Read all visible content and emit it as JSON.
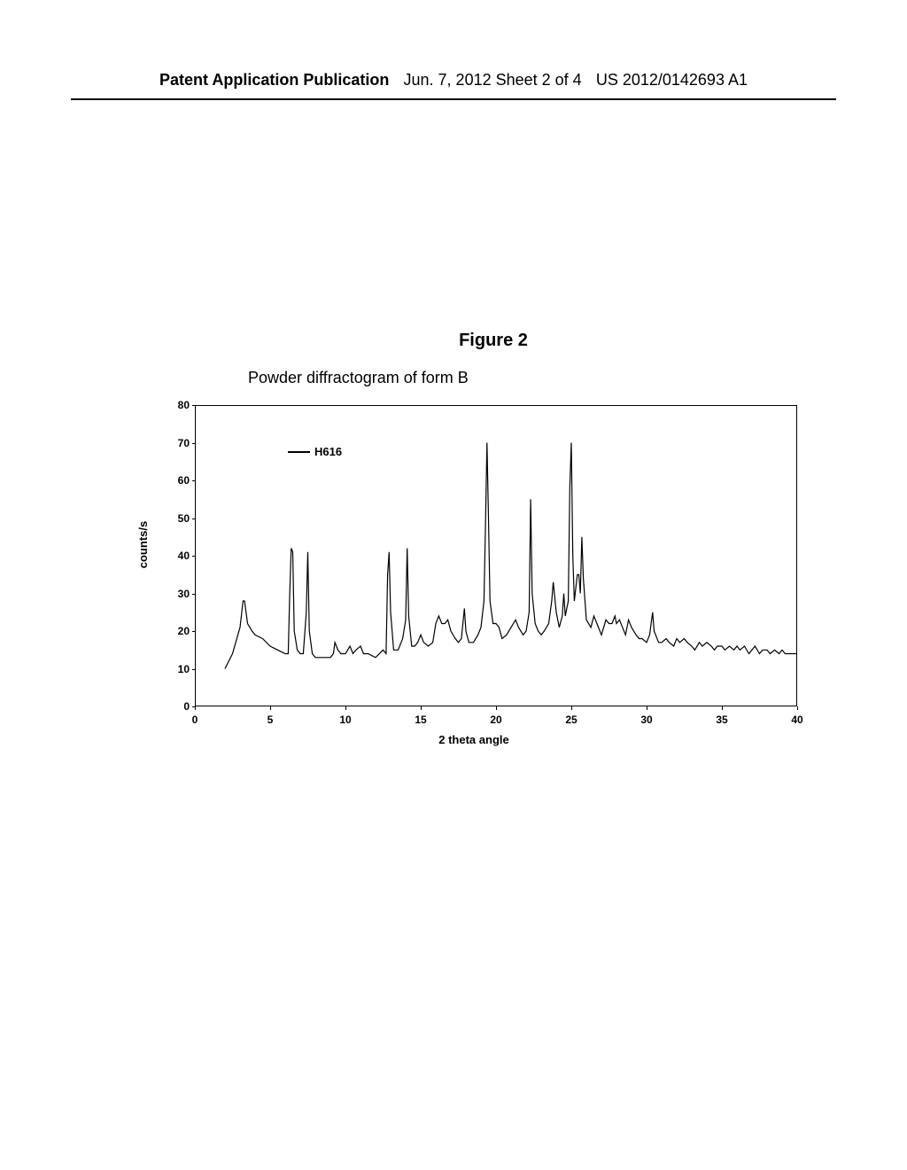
{
  "header": {
    "left": "Patent Application Publication",
    "center": "Jun. 7, 2012  Sheet 2 of 4",
    "right": "US 2012/0142693 A1"
  },
  "figure": {
    "title": "Figure 2",
    "subtitle": "Powder diffractogram of form B"
  },
  "chart": {
    "type": "line",
    "legend_label": "H616",
    "ylabel": "counts/s",
    "xlabel": "2 theta angle",
    "ylim": [
      0,
      80
    ],
    "xlim": [
      0,
      40
    ],
    "ytick_step": 10,
    "xtick_step": 5,
    "yticks": [
      0,
      10,
      20,
      30,
      40,
      50,
      60,
      70,
      80
    ],
    "xticks": [
      0,
      5,
      10,
      15,
      20,
      25,
      30,
      35,
      40
    ],
    "line_color": "#000000",
    "background_color": "#ffffff",
    "data": [
      [
        2.0,
        10
      ],
      [
        2.5,
        14
      ],
      [
        3.0,
        21
      ],
      [
        3.2,
        28
      ],
      [
        3.3,
        28
      ],
      [
        3.5,
        22
      ],
      [
        3.8,
        20
      ],
      [
        4.0,
        19
      ],
      [
        4.5,
        18
      ],
      [
        5.0,
        16
      ],
      [
        5.5,
        15
      ],
      [
        6.0,
        14
      ],
      [
        6.2,
        14
      ],
      [
        6.3,
        30
      ],
      [
        6.4,
        42
      ],
      [
        6.5,
        41
      ],
      [
        6.6,
        20
      ],
      [
        6.8,
        15
      ],
      [
        7.0,
        14
      ],
      [
        7.2,
        14
      ],
      [
        7.4,
        25
      ],
      [
        7.5,
        41
      ],
      [
        7.6,
        20
      ],
      [
        7.8,
        14
      ],
      [
        8.0,
        13
      ],
      [
        8.5,
        13
      ],
      [
        9.0,
        13
      ],
      [
        9.2,
        14
      ],
      [
        9.3,
        17
      ],
      [
        9.5,
        15
      ],
      [
        9.7,
        14
      ],
      [
        10.0,
        14
      ],
      [
        10.3,
        16
      ],
      [
        10.5,
        14
      ],
      [
        10.7,
        15
      ],
      [
        11.0,
        16
      ],
      [
        11.2,
        14
      ],
      [
        11.5,
        14
      ],
      [
        12.0,
        13
      ],
      [
        12.5,
        15
      ],
      [
        12.7,
        14
      ],
      [
        12.8,
        35
      ],
      [
        12.9,
        41
      ],
      [
        13.0,
        25
      ],
      [
        13.2,
        15
      ],
      [
        13.5,
        15
      ],
      [
        13.8,
        18
      ],
      [
        14.0,
        23
      ],
      [
        14.1,
        42
      ],
      [
        14.2,
        24
      ],
      [
        14.4,
        16
      ],
      [
        14.6,
        16
      ],
      [
        14.8,
        17
      ],
      [
        15.0,
        19
      ],
      [
        15.2,
        17
      ],
      [
        15.5,
        16
      ],
      [
        15.8,
        17
      ],
      [
        16.0,
        22
      ],
      [
        16.2,
        24
      ],
      [
        16.4,
        22
      ],
      [
        16.6,
        22
      ],
      [
        16.8,
        23
      ],
      [
        17.0,
        20
      ],
      [
        17.3,
        18
      ],
      [
        17.5,
        17
      ],
      [
        17.7,
        18
      ],
      [
        17.9,
        26
      ],
      [
        18.0,
        20
      ],
      [
        18.2,
        17
      ],
      [
        18.5,
        17
      ],
      [
        18.8,
        19
      ],
      [
        19.0,
        21
      ],
      [
        19.2,
        28
      ],
      [
        19.3,
        48
      ],
      [
        19.4,
        70
      ],
      [
        19.5,
        50
      ],
      [
        19.6,
        28
      ],
      [
        19.8,
        22
      ],
      [
        20.0,
        22
      ],
      [
        20.2,
        21
      ],
      [
        20.4,
        18
      ],
      [
        20.7,
        19
      ],
      [
        21.0,
        21
      ],
      [
        21.3,
        23
      ],
      [
        21.5,
        21
      ],
      [
        21.8,
        19
      ],
      [
        22.0,
        20
      ],
      [
        22.2,
        25
      ],
      [
        22.3,
        55
      ],
      [
        22.4,
        30
      ],
      [
        22.6,
        22
      ],
      [
        22.8,
        20
      ],
      [
        23.0,
        19
      ],
      [
        23.2,
        20
      ],
      [
        23.5,
        22
      ],
      [
        23.7,
        28
      ],
      [
        23.8,
        33
      ],
      [
        24.0,
        25
      ],
      [
        24.2,
        21
      ],
      [
        24.4,
        24
      ],
      [
        24.5,
        30
      ],
      [
        24.6,
        24
      ],
      [
        24.8,
        28
      ],
      [
        24.9,
        58
      ],
      [
        25.0,
        70
      ],
      [
        25.1,
        40
      ],
      [
        25.2,
        28
      ],
      [
        25.4,
        35
      ],
      [
        25.5,
        35
      ],
      [
        25.6,
        30
      ],
      [
        25.7,
        45
      ],
      [
        25.8,
        34
      ],
      [
        26.0,
        23
      ],
      [
        26.3,
        21
      ],
      [
        26.5,
        24
      ],
      [
        26.7,
        22
      ],
      [
        27.0,
        19
      ],
      [
        27.3,
        23
      ],
      [
        27.5,
        22
      ],
      [
        27.7,
        22
      ],
      [
        27.9,
        24
      ],
      [
        28.0,
        22
      ],
      [
        28.2,
        23
      ],
      [
        28.4,
        21
      ],
      [
        28.6,
        19
      ],
      [
        28.8,
        23
      ],
      [
        29.0,
        21
      ],
      [
        29.3,
        19
      ],
      [
        29.5,
        18
      ],
      [
        29.7,
        18
      ],
      [
        30.0,
        17
      ],
      [
        30.2,
        19
      ],
      [
        30.4,
        25
      ],
      [
        30.5,
        20
      ],
      [
        30.8,
        17
      ],
      [
        31.0,
        17
      ],
      [
        31.3,
        18
      ],
      [
        31.5,
        17
      ],
      [
        31.8,
        16
      ],
      [
        32.0,
        18
      ],
      [
        32.2,
        17
      ],
      [
        32.5,
        18
      ],
      [
        32.7,
        17
      ],
      [
        33.0,
        16
      ],
      [
        33.2,
        15
      ],
      [
        33.5,
        17
      ],
      [
        33.7,
        16
      ],
      [
        34.0,
        17
      ],
      [
        34.3,
        16
      ],
      [
        34.5,
        15
      ],
      [
        34.7,
        16
      ],
      [
        35.0,
        16
      ],
      [
        35.2,
        15
      ],
      [
        35.5,
        16
      ],
      [
        35.8,
        15
      ],
      [
        36.0,
        16
      ],
      [
        36.2,
        15
      ],
      [
        36.5,
        16
      ],
      [
        36.8,
        14
      ],
      [
        37.0,
        15
      ],
      [
        37.2,
        16
      ],
      [
        37.5,
        14
      ],
      [
        37.7,
        15
      ],
      [
        38.0,
        15
      ],
      [
        38.2,
        14
      ],
      [
        38.5,
        15
      ],
      [
        38.8,
        14
      ],
      [
        39.0,
        15
      ],
      [
        39.2,
        14
      ],
      [
        39.5,
        14
      ],
      [
        39.8,
        14
      ],
      [
        40.0,
        14
      ]
    ]
  }
}
